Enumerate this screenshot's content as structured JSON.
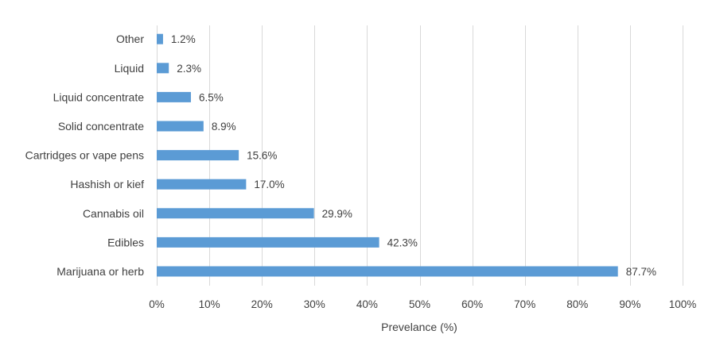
{
  "chart_data": {
    "type": "bar",
    "orientation": "horizontal",
    "categories": [
      "Marijuana or herb",
      "Edibles",
      "Cannabis oil",
      "Hashish or kief",
      "Cartridges or vape pens",
      "Solid concentrate",
      "Liquid concentrate",
      "Liquid",
      "Other"
    ],
    "values": [
      87.7,
      42.3,
      29.9,
      17.0,
      15.6,
      8.9,
      6.5,
      2.3,
      1.2
    ],
    "data_labels": [
      "87.7%",
      "42.3%",
      "29.9%",
      "17.0%",
      "15.6%",
      "8.9%",
      "6.5%",
      "2.3%",
      "1.2%"
    ],
    "xlabel": "Prevelance (%)",
    "ylabel": "",
    "xlim": [
      0,
      100
    ],
    "xticks": [
      0,
      10,
      20,
      30,
      40,
      50,
      60,
      70,
      80,
      90,
      100
    ],
    "xtick_labels": [
      "0%",
      "10%",
      "20%",
      "30%",
      "40%",
      "50%",
      "60%",
      "70%",
      "80%",
      "90%",
      "100%"
    ],
    "grid": "vertical",
    "legend": "none",
    "bar_color": "#5b9bd5"
  }
}
